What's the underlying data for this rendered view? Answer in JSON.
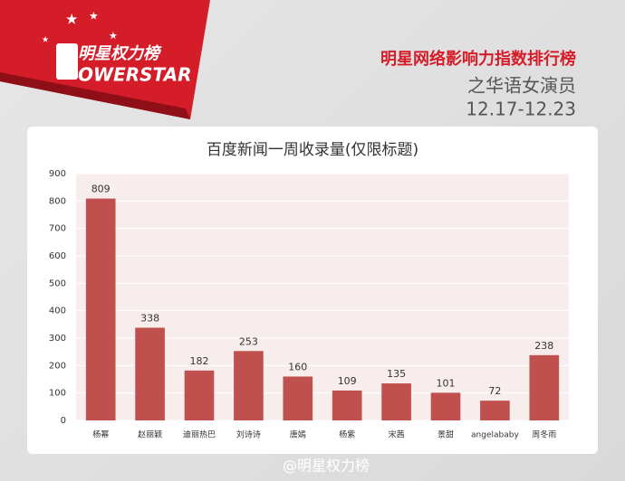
{
  "logo": {
    "name": "明星权力榜",
    "brand": "OWERSTAR"
  },
  "header": {
    "title": "明星网络影响力指数排行榜",
    "subtitle": "之华语女演员",
    "dates": "12.17-12.23"
  },
  "chart_data": {
    "type": "bar",
    "title": "百度新闻一周收录量(仅限标题)",
    "categories": [
      "杨幂",
      "赵丽颖",
      "迪丽热巴",
      "刘诗诗",
      "唐嫣",
      "杨紫",
      "宋茜",
      "景甜",
      "angelababy",
      "周冬雨"
    ],
    "values": [
      809,
      338,
      182,
      253,
      160,
      109,
      135,
      101,
      72,
      238
    ],
    "color": "#c0504d",
    "ylim": [
      0,
      900
    ],
    "yticks": [
      0,
      100,
      200,
      300,
      400,
      500,
      600,
      700,
      800,
      900
    ],
    "grid": true
  },
  "watermark": "@明星权力榜"
}
